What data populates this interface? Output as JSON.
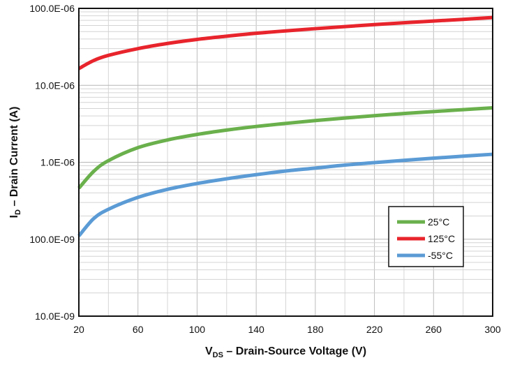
{
  "chart_data": {
    "type": "line",
    "x_scale": "linear",
    "y_scale": "log",
    "xlim": [
      20,
      300
    ],
    "ylim": [
      1e-08,
      0.0001
    ],
    "x_ticks": [
      20,
      60,
      100,
      140,
      180,
      220,
      260,
      300
    ],
    "x_tick_labels": [
      "20",
      "60",
      "100",
      "140",
      "180",
      "220",
      "260",
      "300"
    ],
    "y_ticks": [
      1e-08,
      1e-07,
      1e-06,
      1e-05,
      0.0001
    ],
    "y_tick_labels": [
      "10.0E-09",
      "100.0E-09",
      "1.0E-06",
      "10.0E-06",
      "100.0E-06"
    ],
    "grid": true,
    "legend_position": "lower-right",
    "xlabel": {
      "main": "V",
      "sub": "DS",
      "rest": " – Drain-Source Voltage (V)"
    },
    "ylabel": {
      "main": "I",
      "sub": "D",
      "rest": " – Drain Current  (A)"
    },
    "series": [
      {
        "name": "25°C",
        "color": "#6ab04c",
        "x": [
          20,
          30,
          40,
          60,
          80,
          100,
          120,
          140,
          160,
          180,
          200,
          220,
          240,
          260,
          280,
          300
        ],
        "y": [
          4.6e-07,
          7.6e-07,
          1.05e-06,
          1.55e-06,
          1.95e-06,
          2.3e-06,
          2.62e-06,
          2.92e-06,
          3.2e-06,
          3.48e-06,
          3.76e-06,
          4.03e-06,
          4.3e-06,
          4.56e-06,
          4.83e-06,
          5.1e-06
        ]
      },
      {
        "name": "125°C",
        "color": "#e8242c",
        "x": [
          20,
          30,
          40,
          60,
          80,
          100,
          120,
          140,
          160,
          180,
          200,
          220,
          240,
          260,
          280,
          300
        ],
        "y": [
          1.65e-05,
          2.1e-05,
          2.45e-05,
          3e-05,
          3.5e-05,
          3.95e-05,
          4.35e-05,
          4.75e-05,
          5.1e-05,
          5.45e-05,
          5.8e-05,
          6.15e-05,
          6.5e-05,
          6.85e-05,
          7.2e-05,
          7.6e-05
        ]
      },
      {
        "name": "-55°C",
        "color": "#5b9bd5",
        "x": [
          20,
          30,
          40,
          60,
          80,
          100,
          120,
          140,
          160,
          180,
          200,
          220,
          240,
          260,
          280,
          300
        ],
        "y": [
          1.1e-07,
          1.85e-07,
          2.45e-07,
          3.5e-07,
          4.45e-07,
          5.3e-07,
          6.1e-07,
          6.9e-07,
          7.7e-07,
          8.4e-07,
          9.2e-07,
          9.9e-07,
          1.06e-06,
          1.13e-06,
          1.2e-06,
          1.27e-06
        ]
      }
    ],
    "legend_order": [
      0,
      1,
      2
    ]
  }
}
